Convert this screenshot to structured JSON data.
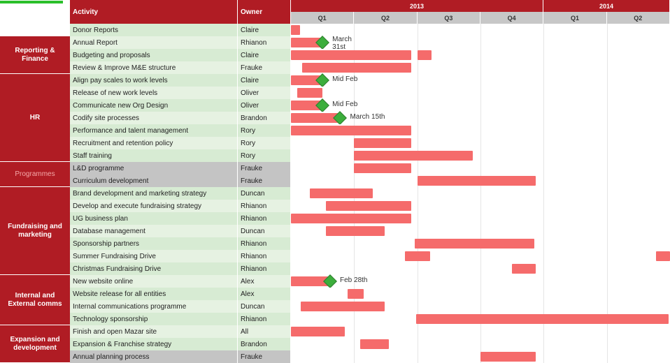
{
  "headers": {
    "activity": "Activity",
    "owner": "Owner",
    "years": [
      {
        "label": "2013",
        "quarters": 4
      },
      {
        "label": "2014",
        "quarters": 2
      }
    ],
    "quarters": [
      "Q1",
      "Q2",
      "Q3",
      "Q4",
      "Q1",
      "Q2"
    ]
  },
  "timeline": {
    "total_quarters": 6,
    "bar_color": "#f56b6b",
    "milestone_color": "#3cae3c"
  },
  "categories": [
    {
      "name": "",
      "rows": 1,
      "faded": false,
      "blank": true
    },
    {
      "name": "Reporting & Finance",
      "rows": 3,
      "faded": false
    },
    {
      "name": "HR",
      "rows": 7,
      "faded": false
    },
    {
      "name": "Programmes",
      "rows": 2,
      "faded": true
    },
    {
      "name": "Fundraising and marketing",
      "rows": 7,
      "faded": false
    },
    {
      "name": "Internal and External comms",
      "rows": 4,
      "faded": false
    },
    {
      "name": "Expansion and development",
      "rows": 3,
      "faded": false
    }
  ],
  "rows": [
    {
      "activity": "Donor Reports",
      "owner": "Claire",
      "shade": "g1",
      "bar": {
        "start": 0.0,
        "end": 0.14
      }
    },
    {
      "activity": "Annual Report",
      "owner": "Rhianon",
      "shade": "g0",
      "bar": {
        "start": 0.0,
        "end": 0.48
      },
      "milestone": {
        "pos": 0.5,
        "label": "March 31st",
        "label_two_lines": true
      }
    },
    {
      "activity": "Budgeting and proposals",
      "owner": "Claire",
      "shade": "g1",
      "bar": {
        "start": 0.0,
        "end": 1.9
      },
      "milestone": null,
      "second_bar": {
        "start": 2.0,
        "end": 2.22
      }
    },
    {
      "activity": "Review & Improve M&E structure",
      "owner": "Frauke",
      "shade": "g0",
      "bar": {
        "start": 0.18,
        "end": 1.9
      }
    },
    {
      "activity": "Align pay scales to work levels",
      "owner": "Claire",
      "shade": "g1",
      "bar": {
        "start": 0.0,
        "end": 0.48
      },
      "milestone": {
        "pos": 0.5,
        "label": "Mid Feb"
      }
    },
    {
      "activity": "Release of new work levels",
      "owner": "Oliver",
      "shade": "g0",
      "bar": {
        "start": 0.1,
        "end": 0.5
      }
    },
    {
      "activity": "Communicate new Org Design",
      "owner": "Oliver",
      "shade": "g1",
      "bar": {
        "start": 0.0,
        "end": 0.48
      },
      "milestone": {
        "pos": 0.5,
        "label": "Mid Feb"
      }
    },
    {
      "activity": "Codify site processes",
      "owner": "Brandon",
      "shade": "g0",
      "bar": {
        "start": 0.0,
        "end": 0.76
      },
      "milestone": {
        "pos": 0.78,
        "label": "March 15th"
      }
    },
    {
      "activity": "Performance and talent management",
      "owner": "Rory",
      "shade": "g1",
      "bar": {
        "start": 0.0,
        "end": 1.9
      }
    },
    {
      "activity": "Recruitment and retention policy",
      "owner": "Rory",
      "shade": "g0",
      "bar": {
        "start": 1.0,
        "end": 1.9
      }
    },
    {
      "activity": "Staff training",
      "owner": "Rory",
      "shade": "g1",
      "bar": {
        "start": 1.0,
        "end": 2.88
      }
    },
    {
      "activity": "L&D programme",
      "owner": "Frauke",
      "shade": "grey",
      "bar": {
        "start": 1.0,
        "end": 1.9
      }
    },
    {
      "activity": "Curriculum development",
      "owner": "Frauke",
      "shade": "grey",
      "bar": {
        "start": 2.0,
        "end": 3.88
      }
    },
    {
      "activity": "Brand development and marketing strategy",
      "owner": "Duncan",
      "shade": "g1",
      "bar": {
        "start": 0.3,
        "end": 1.3
      }
    },
    {
      "activity": "Develop and execute fundraising strategy",
      "owner": "Rhianon",
      "shade": "g0",
      "bar": {
        "start": 0.55,
        "end": 1.9
      }
    },
    {
      "activity": "UG business plan",
      "owner": "Rhianon",
      "shade": "g1",
      "bar": {
        "start": 0.0,
        "end": 1.9
      }
    },
    {
      "activity": "Database management",
      "owner": "Duncan",
      "shade": "g0",
      "bar": {
        "start": 0.55,
        "end": 1.48
      }
    },
    {
      "activity": "Sponsorship partners",
      "owner": "Rhianon",
      "shade": "g1",
      "bar": {
        "start": 1.96,
        "end": 3.85
      }
    },
    {
      "activity": "Summer Fundraising Drive",
      "owner": "Rhianon",
      "shade": "g0",
      "bar": {
        "start": 1.8,
        "end": 2.2
      },
      "second_bar": {
        "start": 5.78,
        "end": 6.0
      }
    },
    {
      "activity": "Christmas Fundraising Drive",
      "owner": "Rhianon",
      "shade": "g1",
      "bar": {
        "start": 3.5,
        "end": 3.88
      }
    },
    {
      "activity": "New website online",
      "owner": "Alex",
      "shade": "g0",
      "bar": {
        "start": 0.0,
        "end": 0.6
      },
      "milestone": {
        "pos": 0.62,
        "label": "Feb 28th"
      }
    },
    {
      "activity": "Website release for all entities",
      "owner": "Alex",
      "shade": "g1",
      "bar": {
        "start": 0.9,
        "end": 1.15
      }
    },
    {
      "activity": "Internal communications programme",
      "owner": "Duncan",
      "shade": "g0",
      "bar": {
        "start": 0.15,
        "end": 1.48
      }
    },
    {
      "activity": "Technology sponsorship",
      "owner": "Rhianon",
      "shade": "g1",
      "bar": {
        "start": 1.98,
        "end": 5.98
      }
    },
    {
      "activity": "Finish and open Mazar site",
      "owner": "All",
      "shade": "g0",
      "bar": {
        "start": 0.0,
        "end": 0.85
      }
    },
    {
      "activity": "Expansion & Franchise  strategy",
      "owner": "Brandon",
      "shade": "g1",
      "bar": {
        "start": 1.1,
        "end": 1.55
      }
    },
    {
      "activity": "Annual planning process",
      "owner": "Frauke",
      "shade": "grey",
      "bar": {
        "start": 3.0,
        "end": 3.88
      }
    }
  ]
}
